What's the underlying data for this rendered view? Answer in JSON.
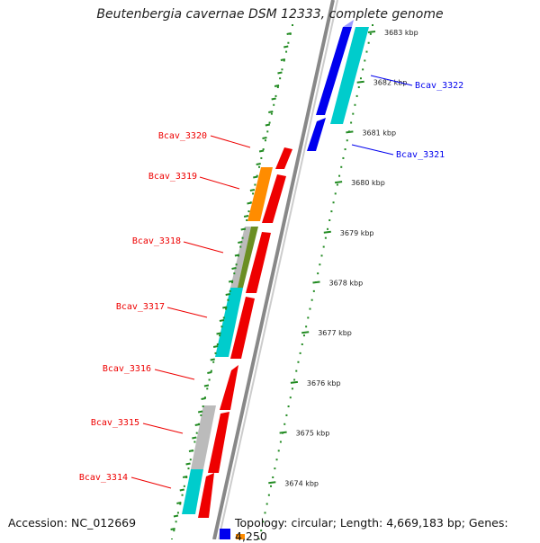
{
  "title": "Beutenbergia cavernae DSM 12333, complete genome",
  "footer": {
    "accession": "Accession: NC_012669",
    "summary": "Topology: circular; Length: 4,669,183 bp; Genes: 4,250"
  },
  "colors": {
    "forward_gene": "#0000ee",
    "reverse_gene": "#ee0000",
    "cds_cyan": "#00cccc",
    "cds_orange": "#ff8c00",
    "cds_olive": "#6b8e23",
    "cds_gray": "#bbbbbb",
    "tick_green": "#228b22",
    "backbone": "#888888"
  },
  "scale_ticks": [
    "3683 kbp",
    "3682 kbp",
    "3681 kbp",
    "3680 kbp",
    "3679 kbp",
    "3678 kbp",
    "3677 kbp",
    "3676 kbp",
    "3675 kbp",
    "3674 kbp"
  ],
  "gene_labels": {
    "forward": [
      "Bcav_3322",
      "Bcav_3321"
    ],
    "reverse": [
      "Bcav_3320",
      "Bcav_3319",
      "Bcav_3318",
      "Bcav_3317",
      "Bcav_3316",
      "Bcav_3315",
      "Bcav_3314"
    ]
  }
}
